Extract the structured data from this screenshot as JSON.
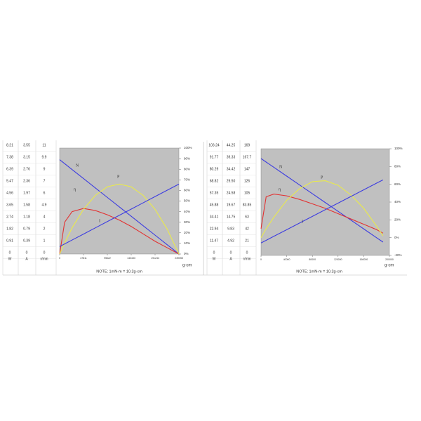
{
  "tables": [
    {
      "header": [
        "W",
        "A",
        "r/min"
      ],
      "rows": [
        [
          "8.21",
          "3.55",
          "11"
        ],
        [
          "7.38",
          "3.15",
          "9.9"
        ],
        [
          "6.39",
          "2.76",
          "9"
        ],
        [
          "5.47",
          "2.36",
          "7"
        ],
        [
          "4.56",
          "1.97",
          "6"
        ],
        [
          "3.65",
          "1.58",
          "4.9"
        ],
        [
          "2.74",
          "1.18",
          "4"
        ],
        [
          "1.82",
          "0.79",
          "2"
        ],
        [
          "0.91",
          "0.39",
          "1"
        ],
        [
          "0",
          "0",
          "0"
        ]
      ]
    },
    {
      "header": [
        "W",
        "A",
        "r/min"
      ],
      "rows": [
        [
          "103.24",
          "44.25",
          "169"
        ],
        [
          "91.77",
          "39.33",
          "167.7"
        ],
        [
          "80.29",
          "34.42",
          "147"
        ],
        [
          "68.82",
          "29.50",
          "126"
        ],
        [
          "57.35",
          "24.58",
          "105"
        ],
        [
          "45.88",
          "19.67",
          "83.85"
        ],
        [
          "34.41",
          "14.75",
          "63"
        ],
        [
          "22.94",
          "9.83",
          "42"
        ],
        [
          "11.47",
          "4.92",
          "21"
        ],
        [
          "0",
          "0",
          "0"
        ]
      ]
    }
  ],
  "notes": [
    "NOTE: 1mN-m = 10.2g-cm",
    "NOTE: 1mN-m = 10.2g-cm"
  ],
  "chart_data": [
    {
      "type": "line",
      "x_label": "g·cm",
      "x": [
        0,
        10000,
        25000,
        47811,
        71717,
        95622,
        119528,
        143433,
        167339,
        191244,
        215150,
        239055
      ],
      "xlim": [
        0,
        239055
      ],
      "xticks": [
        0,
        47811,
        95622,
        143433,
        191244,
        239055
      ],
      "ylim": [
        0,
        100
      ],
      "yticks": [
        {
          "value": 0,
          "label": "0%"
        },
        {
          "value": 10,
          "label": "10%"
        },
        {
          "value": 20,
          "label": "20%"
        },
        {
          "value": 30,
          "label": "30%"
        },
        {
          "value": 40,
          "label": "40%"
        },
        {
          "value": 50,
          "label": "50%"
        },
        {
          "value": 60,
          "label": "60%"
        },
        {
          "value": 70,
          "label": "70%"
        },
        {
          "value": 80,
          "label": "80%"
        },
        {
          "value": 90,
          "label": "90%"
        },
        {
          "value": 100,
          "label": "100%"
        }
      ],
      "series": [
        {
          "name": "N",
          "color": "#3c3ce0",
          "values": [
            89,
            85.3,
            79.7,
            71.2,
            62.3,
            53.4,
            44.5,
            35.6,
            26.7,
            17.8,
            8.9,
            0
          ]
        },
        {
          "name": "η",
          "color": "#e23232",
          "values": [
            0,
            30,
            40,
            43,
            41,
            37,
            32,
            26,
            19,
            12,
            6,
            0
          ]
        },
        {
          "name": "P",
          "color": "#eaea4a",
          "values": [
            0,
            10.6,
            24.7,
            42.2,
            55.4,
            63.4,
            66,
            63.4,
            55.4,
            42.2,
            23.8,
            0
          ]
        },
        {
          "name": "I",
          "color": "#3c3ce0",
          "values": [
            7,
            9.5,
            13.2,
            18.8,
            24.7,
            30.6,
            36.5,
            42.4,
            48.3,
            54.2,
            60.1,
            66
          ]
        }
      ]
    },
    {
      "type": "line",
      "x_label": "g·cm",
      "x": [
        0,
        8000,
        20000,
        40000,
        60000,
        80000,
        100000,
        120000,
        140000,
        160000,
        180000,
        190000
      ],
      "xlim": [
        0,
        200000
      ],
      "xticks": [
        0,
        40000,
        80000,
        120000,
        160000,
        200000
      ],
      "ylim": [
        -20,
        100
      ],
      "yticks": [
        {
          "value": -20,
          "label": "-20%"
        },
        {
          "value": 0,
          "label": "0%"
        },
        {
          "value": 20,
          "label": "20%"
        },
        {
          "value": 40,
          "label": "40%"
        },
        {
          "value": 60,
          "label": "60%"
        },
        {
          "value": 80,
          "label": "80%"
        },
        {
          "value": 100,
          "label": "100%"
        }
      ],
      "series": [
        {
          "name": "N",
          "color": "#3c3ce0",
          "values": [
            89,
            85,
            79.1,
            69.2,
            59.3,
            49.4,
            39.5,
            29.6,
            19.7,
            9.8,
            -0.1,
            -5
          ]
        },
        {
          "name": "η",
          "color": "#e23232",
          "values": [
            10,
            46,
            49,
            47,
            43,
            38,
            33,
            27,
            21,
            15,
            9,
            5
          ]
        },
        {
          "name": "P",
          "color": "#eaea4a",
          "values": [
            0,
            10,
            23,
            42,
            55,
            63,
            64,
            59,
            48,
            33,
            13,
            2
          ]
        },
        {
          "name": "I",
          "color": "#3c3ce0",
          "values": [
            -6,
            -3,
            1.5,
            8.9,
            16.4,
            23.9,
            31.4,
            38.8,
            46.3,
            53.8,
            61.3,
            65
          ]
        }
      ]
    }
  ]
}
